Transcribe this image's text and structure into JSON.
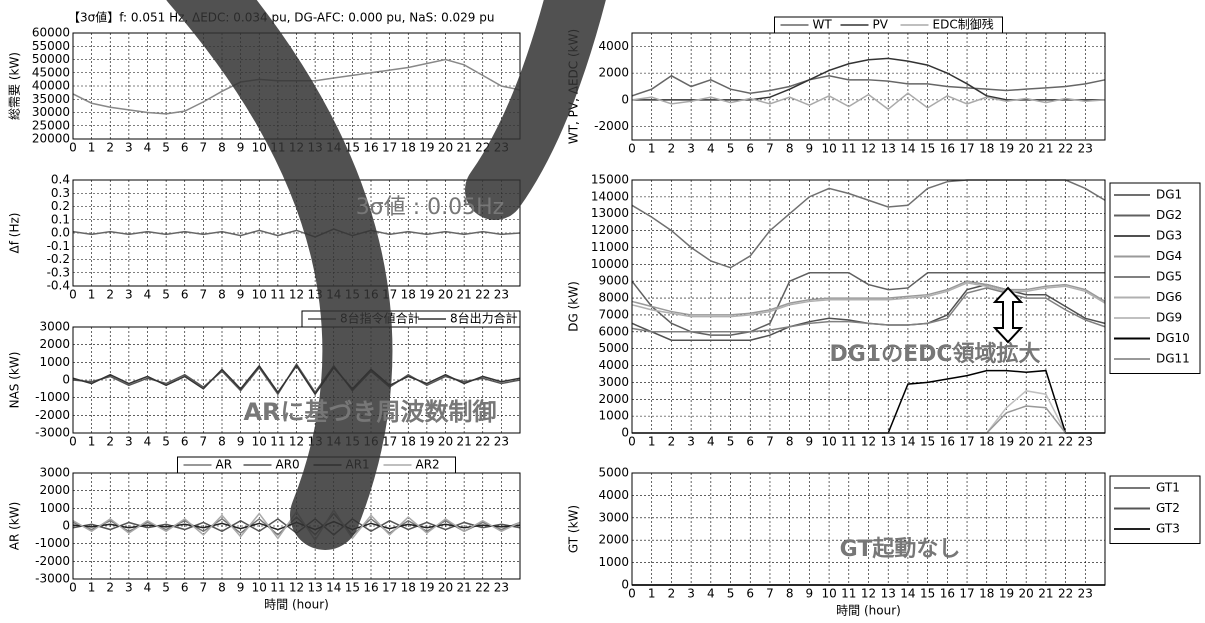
{
  "chart_data": [
    {
      "type": "line",
      "title": "【3σ値】f: 0.051 Hz, ΔEDC: 0.034 pu, DG-AFC: 0.000 pu, NaS: 0.029 pu",
      "ylabel": "総需要 (kW)",
      "x": [
        0,
        1,
        2,
        3,
        4,
        5,
        6,
        7,
        8,
        9,
        10,
        11,
        12,
        13,
        14,
        15,
        16,
        17,
        18,
        19,
        20,
        21,
        22,
        23,
        24
      ],
      "xlim": [
        0,
        24
      ],
      "xticks": [
        0,
        1,
        2,
        3,
        4,
        5,
        6,
        7,
        8,
        9,
        10,
        11,
        12,
        13,
        14,
        15,
        16,
        17,
        18,
        19,
        20,
        21,
        22,
        23
      ],
      "ylim": [
        20000,
        60000
      ],
      "yticks": [
        20000,
        25000,
        30000,
        35000,
        40000,
        45000,
        50000,
        55000,
        60000
      ],
      "grid": true,
      "series": [
        {
          "color": "#888888",
          "values": [
            37000,
            33500,
            32000,
            31000,
            30000,
            29500,
            30500,
            34000,
            38000,
            41500,
            42500,
            42000,
            42000,
            42000,
            43000,
            44000,
            45000,
            46000,
            47000,
            48500,
            50000,
            48000,
            44000,
            40000,
            38500
          ]
        }
      ]
    },
    {
      "type": "line",
      "ylabel": "Δf (Hz)",
      "x": [
        0,
        1,
        2,
        3,
        4,
        5,
        6,
        7,
        8,
        9,
        10,
        11,
        12,
        13,
        14,
        15,
        16,
        17,
        18,
        19,
        20,
        21,
        22,
        23,
        24
      ],
      "xlim": [
        0,
        24
      ],
      "xticks": [
        0,
        1,
        2,
        3,
        4,
        5,
        6,
        7,
        8,
        9,
        10,
        11,
        12,
        13,
        14,
        15,
        16,
        17,
        18,
        19,
        20,
        21,
        22,
        23
      ],
      "ylim": [
        -0.4,
        0.4
      ],
      "yticks": [
        -0.4,
        -0.3,
        -0.2,
        -0.1,
        {
          "value": 0,
          "label": "0.0"
        },
        0.1,
        0.2,
        0.3,
        0.4
      ],
      "grid": true,
      "series": [
        {
          "color": "#666666",
          "values": [
            0.01,
            -0.01,
            0.01,
            -0.01,
            0.01,
            -0.01,
            0.01,
            -0.01,
            0.01,
            -0.02,
            0.02,
            -0.02,
            0.02,
            -0.03,
            0.03,
            -0.02,
            0.02,
            -0.01,
            0.01,
            -0.01,
            0.01,
            -0.01,
            0.01,
            -0.01,
            0
          ]
        }
      ],
      "annotations": [
        "3σ値 : 0.05Hz"
      ]
    },
    {
      "type": "line",
      "ylabel": "NAS (kW)",
      "x": [
        0,
        1,
        2,
        3,
        4,
        5,
        6,
        7,
        8,
        9,
        10,
        11,
        12,
        13,
        14,
        15,
        16,
        17,
        18,
        19,
        20,
        21,
        22,
        23,
        24
      ],
      "xlim": [
        0,
        24
      ],
      "xticks": [
        0,
        1,
        2,
        3,
        4,
        5,
        6,
        7,
        8,
        9,
        10,
        11,
        12,
        13,
        14,
        15,
        16,
        17,
        18,
        19,
        20,
        21,
        22,
        23
      ],
      "ylim": [
        -3000,
        3000
      ],
      "yticks": [
        -3000,
        -2000,
        -1000,
        0,
        1000,
        2000,
        3000
      ],
      "grid": true,
      "legend": "top-right",
      "series": [
        {
          "name": "8台指令値合計",
          "color": "#555555",
          "values": [
            0,
            -100,
            200,
            -300,
            100,
            -200,
            300,
            -400,
            500,
            -600,
            700,
            -800,
            900,
            -700,
            800,
            -600,
            500,
            -400,
            300,
            -300,
            200,
            -100,
            100,
            -200,
            0
          ]
        },
        {
          "name": "8台出力合計",
          "color": "#333333",
          "values": [
            100,
            -200,
            300,
            -200,
            200,
            -300,
            200,
            -500,
            600,
            -500,
            800,
            -700,
            800,
            -800,
            700,
            -500,
            600,
            -300,
            200,
            -200,
            300,
            -200,
            200,
            -100,
            100
          ]
        }
      ],
      "annotations": [
        "ARに基づき周波数制御"
      ]
    },
    {
      "type": "line",
      "ylabel": "AR (kW)",
      "xlabel": "時間 (hour)",
      "x": [
        0,
        1,
        2,
        3,
        4,
        5,
        6,
        7,
        8,
        9,
        10,
        11,
        12,
        13,
        14,
        15,
        16,
        17,
        18,
        19,
        20,
        21,
        22,
        23,
        24
      ],
      "xlim": [
        0,
        24
      ],
      "xticks": [
        0,
        1,
        2,
        3,
        4,
        5,
        6,
        7,
        8,
        9,
        10,
        11,
        12,
        13,
        14,
        15,
        16,
        17,
        18,
        19,
        20,
        21,
        22,
        23
      ],
      "ylim": [
        -3000,
        3000
      ],
      "yticks": [
        -3000,
        -2000,
        -1000,
        0,
        1000,
        2000,
        3000
      ],
      "grid": true,
      "legend": "top-center",
      "series": [
        {
          "name": "AR",
          "color": "#777777",
          "values": [
            200,
            -200,
            300,
            -300,
            200,
            -200,
            300,
            -300,
            400,
            -400,
            400,
            -500,
            500,
            -500,
            700,
            -500,
            400,
            -400,
            300,
            -300,
            300,
            -300,
            200,
            -200,
            200
          ]
        },
        {
          "name": "AR0",
          "color": "#555555",
          "values": [
            -100,
            100,
            -200,
            200,
            -100,
            100,
            -200,
            200,
            -300,
            300,
            -300,
            400,
            -400,
            400,
            -500,
            400,
            -300,
            300,
            -200,
            200,
            -200,
            200,
            -100,
            100,
            -100
          ]
        },
        {
          "name": "AR1",
          "color": "#222222",
          "values": [
            50,
            -50,
            100,
            -100,
            50,
            -50,
            100,
            -100,
            150,
            -150,
            150,
            -200,
            200,
            -200,
            250,
            -200,
            150,
            -150,
            100,
            -100,
            100,
            -100,
            50,
            -50,
            50
          ]
        },
        {
          "name": "AR2",
          "color": "#aaaaaa",
          "values": [
            300,
            -300,
            400,
            -400,
            300,
            -300,
            400,
            -500,
            600,
            -600,
            700,
            -700,
            800,
            -800,
            900,
            -700,
            600,
            -500,
            500,
            -400,
            400,
            -300,
            300,
            -300,
            200
          ]
        }
      ]
    },
    {
      "type": "line",
      "ylabel": "WT, PV, ΔEDC (kW)",
      "x": [
        0,
        1,
        2,
        3,
        4,
        5,
        6,
        7,
        8,
        9,
        10,
        11,
        12,
        13,
        14,
        15,
        16,
        17,
        18,
        19,
        20,
        21,
        22,
        23,
        24
      ],
      "xlim": [
        0,
        24
      ],
      "xticks": [
        0,
        1,
        2,
        3,
        4,
        5,
        6,
        7,
        8,
        9,
        10,
        11,
        12,
        13,
        14,
        15,
        16,
        17,
        18,
        19,
        20,
        21,
        22,
        23
      ],
      "ylim": [
        -3000,
        5000
      ],
      "yticks": [
        -2000,
        0,
        2000,
        4000
      ],
      "grid": true,
      "legend": "top-center",
      "series": [
        {
          "name": "WT",
          "color": "#666666",
          "values": [
            300,
            800,
            1800,
            1000,
            1500,
            800,
            500,
            700,
            1000,
            1500,
            1800,
            1500,
            1500,
            1400,
            1200,
            1200,
            1000,
            900,
            800,
            700,
            800,
            900,
            1000,
            1200,
            1500
          ]
        },
        {
          "name": "PV",
          "color": "#333333",
          "values": [
            0,
            0,
            0,
            0,
            0,
            0,
            0,
            200,
            800,
            1500,
            2200,
            2700,
            3000,
            3100,
            2900,
            2600,
            2000,
            1200,
            300,
            0,
            0,
            0,
            0,
            0,
            0
          ]
        },
        {
          "name": "EDC制御残",
          "color": "#aaaaaa",
          "values": [
            0,
            200,
            -300,
            -100,
            200,
            -200,
            100,
            -300,
            200,
            -400,
            300,
            -500,
            400,
            -700,
            500,
            -600,
            300,
            -300,
            200,
            -100,
            100,
            -200,
            100,
            -100,
            0
          ]
        }
      ]
    },
    {
      "type": "line",
      "ylabel": "DG (kW)",
      "x": [
        0,
        1,
        2,
        3,
        4,
        5,
        6,
        7,
        8,
        9,
        10,
        11,
        12,
        13,
        14,
        15,
        16,
        17,
        18,
        19,
        20,
        21,
        22,
        23,
        24
      ],
      "xlim": [
        0,
        24
      ],
      "xticks": [
        0,
        1,
        2,
        3,
        4,
        5,
        6,
        7,
        8,
        9,
        10,
        11,
        12,
        13,
        14,
        15,
        16,
        17,
        18,
        19,
        20,
        21,
        22,
        23
      ],
      "ylim": [
        0,
        15000
      ],
      "yticks": [
        0,
        1000,
        2000,
        3000,
        4000,
        5000,
        6000,
        7000,
        8000,
        9000,
        10000,
        11000,
        12000,
        13000,
        14000,
        15000
      ],
      "grid": true,
      "legend": "right",
      "series": [
        {
          "name": "DG1",
          "color": "#707070",
          "values": [
            13500,
            12800,
            12000,
            11000,
            10200,
            9800,
            10500,
            12000,
            13000,
            14000,
            14500,
            14200,
            13800,
            13400,
            13500,
            14500,
            14900,
            15000,
            15000,
            15000,
            15000,
            15000,
            15000,
            14500,
            13800
          ]
        },
        {
          "name": "DG2",
          "color": "#606060",
          "values": [
            9000,
            7500,
            6500,
            6000,
            5800,
            5800,
            6000,
            6500,
            9000,
            9500,
            9500,
            9500,
            8800,
            8500,
            8600,
            9500,
            9500,
            9500,
            9500,
            9500,
            9500,
            9500,
            9500,
            9500,
            9500
          ]
        },
        {
          "name": "DG3",
          "color": "#505050",
          "values": [
            6500,
            6000,
            5500,
            5500,
            5500,
            5500,
            5500,
            5800,
            6300,
            6600,
            6800,
            6700,
            6500,
            6400,
            6400,
            6500,
            7000,
            8500,
            8800,
            8500,
            8200,
            8200,
            7500,
            6800,
            6500
          ]
        },
        {
          "name": "DG4",
          "color": "#9a9a9a",
          "values": [
            7800,
            7500,
            7200,
            7000,
            7000,
            7000,
            7100,
            7300,
            7700,
            7900,
            8000,
            8000,
            8000,
            8000,
            8100,
            8200,
            8500,
            9000,
            8800,
            8500,
            8500,
            8700,
            8800,
            8500,
            7800
          ]
        },
        {
          "name": "DG5",
          "color": "#808080",
          "values": [
            6200,
            6000,
            6000,
            6000,
            6000,
            6000,
            6000,
            6100,
            6300,
            6500,
            6600,
            6600,
            6500,
            6400,
            6400,
            6500,
            6800,
            8300,
            8600,
            8300,
            8000,
            8000,
            7300,
            6700,
            6300
          ]
        },
        {
          "name": "DG6",
          "color": "#b0b0b0",
          "values": [
            7600,
            7300,
            7100,
            6900,
            6900,
            6900,
            7000,
            7200,
            7600,
            7800,
            7900,
            7900,
            7900,
            7900,
            8000,
            8100,
            8400,
            8900,
            8700,
            8400,
            8400,
            8600,
            8700,
            8400,
            7700
          ]
        },
        {
          "name": "DG9",
          "color": "#c0c0c0",
          "values": [
            0,
            0,
            0,
            0,
            0,
            0,
            0,
            0,
            0,
            0,
            0,
            0,
            0,
            0,
            0,
            0,
            0,
            0,
            0,
            1500,
            2500,
            2300,
            0,
            0,
            0
          ]
        },
        {
          "name": "DG10",
          "color": "#000000",
          "values": [
            0,
            0,
            0,
            0,
            0,
            0,
            0,
            0,
            0,
            0,
            0,
            0,
            0,
            0,
            2900,
            3000,
            3200,
            3400,
            3700,
            3700,
            3600,
            3700,
            0,
            0,
            0
          ]
        },
        {
          "name": "DG11",
          "color": "#999999",
          "values": [
            0,
            0,
            0,
            0,
            0,
            0,
            0,
            0,
            0,
            0,
            0,
            0,
            0,
            0,
            0,
            0,
            0,
            0,
            0,
            1200,
            1600,
            1500,
            0,
            0,
            0
          ]
        }
      ],
      "annotations": [
        "DG1のEDC領域拡大"
      ]
    },
    {
      "type": "line",
      "ylabel": "GT (kW)",
      "xlabel": "時間 (hour)",
      "x": [
        0,
        1,
        2,
        3,
        4,
        5,
        6,
        7,
        8,
        9,
        10,
        11,
        12,
        13,
        14,
        15,
        16,
        17,
        18,
        19,
        20,
        21,
        22,
        23,
        24
      ],
      "xlim": [
        0,
        24
      ],
      "xticks": [
        0,
        1,
        2,
        3,
        4,
        5,
        6,
        7,
        8,
        9,
        10,
        11,
        12,
        13,
        14,
        15,
        16,
        17,
        18,
        19,
        20,
        21,
        22,
        23
      ],
      "ylim": [
        0,
        5000
      ],
      "yticks": [
        0,
        1000,
        2000,
        3000,
        4000,
        5000
      ],
      "grid": true,
      "legend": "right",
      "series": [
        {
          "name": "GT1",
          "color": "#777777",
          "values": [
            0,
            0,
            0,
            0,
            0,
            0,
            0,
            0,
            0,
            0,
            0,
            0,
            0,
            0,
            0,
            0,
            0,
            0,
            0,
            0,
            0,
            0,
            0,
            0,
            0
          ]
        },
        {
          "name": "GT2",
          "color": "#555555",
          "values": [
            0,
            0,
            0,
            0,
            0,
            0,
            0,
            0,
            0,
            0,
            0,
            0,
            0,
            0,
            0,
            0,
            0,
            0,
            0,
            0,
            0,
            0,
            0,
            0,
            0
          ]
        },
        {
          "name": "GT3",
          "color": "#222222",
          "values": [
            0,
            0,
            0,
            0,
            0,
            0,
            0,
            0,
            0,
            0,
            0,
            0,
            0,
            0,
            0,
            0,
            0,
            0,
            0,
            0,
            0,
            0,
            0,
            0,
            0
          ]
        }
      ],
      "annotations": [
        "GT起動なし"
      ]
    }
  ]
}
